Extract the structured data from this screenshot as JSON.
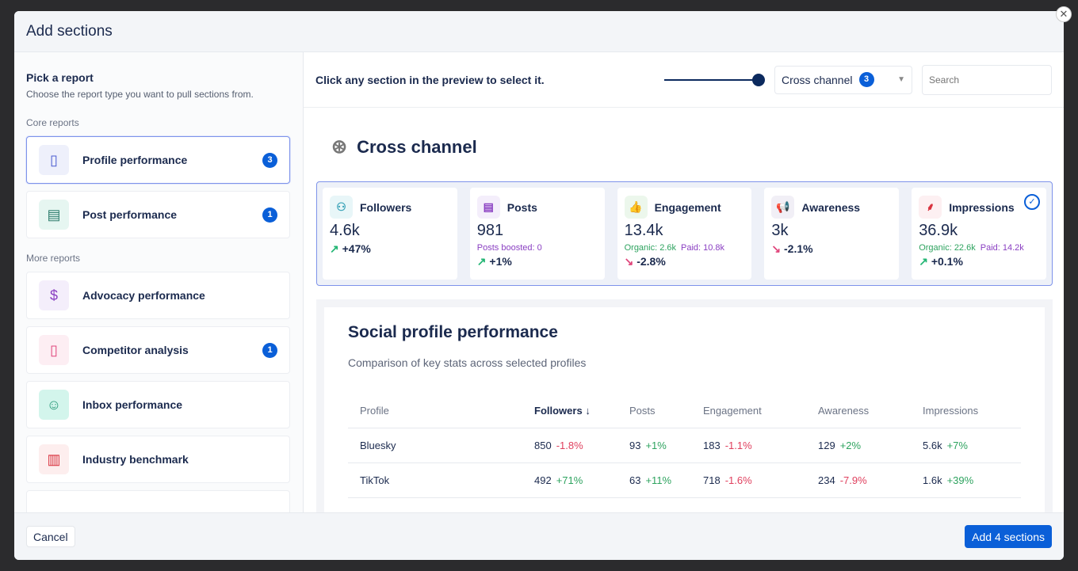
{
  "modal": {
    "title": "Add sections",
    "close_icon": "close-icon"
  },
  "left": {
    "title": "Pick a report",
    "subtitle": "Choose the report type you want to pull sections from.",
    "core_label": "Core reports",
    "more_label": "More reports",
    "core": [
      {
        "label": "Profile performance",
        "badge": "3",
        "icon": "profile-phone-icon",
        "selected": true
      },
      {
        "label": "Post performance",
        "badge": "1",
        "icon": "document-icon"
      }
    ],
    "more": [
      {
        "label": "Advocacy performance",
        "icon": "megaphone-dollar-icon"
      },
      {
        "label": "Competitor analysis",
        "badge": "1",
        "icon": "competitor-phone-icon"
      },
      {
        "label": "Inbox performance",
        "icon": "inbox-icon"
      },
      {
        "label": "Industry benchmark",
        "icon": "benchmark-chart-icon"
      }
    ]
  },
  "toolbar": {
    "hint": "Click any section in the preview to select it.",
    "channel": "Cross channel",
    "channel_badge": "3",
    "search_placeholder": "Search",
    "zoom_level": 1.0
  },
  "preview": {
    "title": "Cross channel",
    "stats": [
      {
        "label": "Followers",
        "value": "4.6k",
        "change": "+47%",
        "trend": "up"
      },
      {
        "label": "Posts",
        "value": "981",
        "extra": "Posts boosted: 0",
        "change": "+1%",
        "trend": "up"
      },
      {
        "label": "Engagement",
        "value": "13.4k",
        "organic": "Organic: 2.6k",
        "paid": "Paid: 10.8k",
        "change": "-2.8%",
        "trend": "down"
      },
      {
        "label": "Awareness",
        "value": "3k",
        "change": "-2.1%",
        "trend": "down"
      },
      {
        "label": "Impressions",
        "value": "36.9k",
        "organic": "Organic: 22.6k",
        "paid": "Paid: 14.2k",
        "change": "+0.1%",
        "trend": "up"
      }
    ],
    "section": {
      "title": "Social profile performance",
      "description": "Comparison of key stats across selected profiles",
      "columns": [
        "Profile",
        "Followers",
        "Posts",
        "Engagement",
        "Awareness",
        "Impressions"
      ],
      "rows": [
        {
          "profile": "Bluesky",
          "cells": [
            [
              "850",
              "-1.8%"
            ],
            [
              "93",
              "+1%"
            ],
            [
              "183",
              "-1.1%"
            ],
            [
              "129",
              "+2%"
            ],
            [
              "5.6k",
              "+7%"
            ]
          ]
        },
        {
          "profile": "TikTok",
          "cells": [
            [
              "492",
              "+71%"
            ],
            [
              "63",
              "+11%"
            ],
            [
              "718",
              "-1.6%"
            ],
            [
              "234",
              "-7.9%"
            ],
            [
              "1.6k",
              "+39%"
            ]
          ]
        }
      ]
    }
  },
  "footer": {
    "cancel": "Cancel",
    "add": "Add 4 sections"
  }
}
